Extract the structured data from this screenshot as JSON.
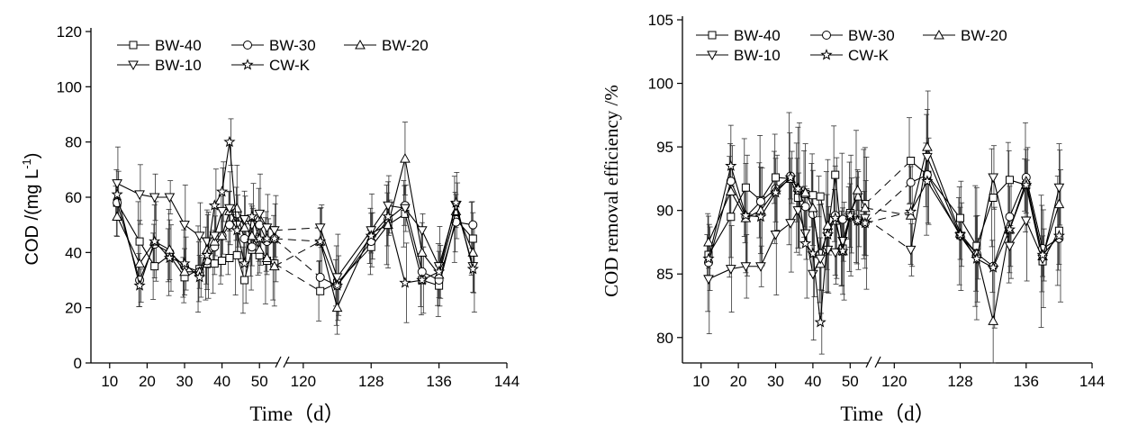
{
  "chart_data": [
    {
      "type": "line",
      "title": "",
      "xlabel": "Time（d）",
      "ylabel_main": "COD /(mg L",
      "ylabel_sup": "-1",
      "ylabel_end": ")",
      "ylim": [
        0,
        120
      ],
      "yticks": [
        0,
        20,
        40,
        60,
        80,
        100,
        120
      ],
      "xticks_left": [
        10,
        20,
        30,
        40,
        50
      ],
      "xticks_right": [
        120,
        128,
        136,
        144
      ],
      "x_broken_axis": true,
      "x_segments": [
        [
          5,
          55
        ],
        [
          118,
          144
        ]
      ],
      "legend_position": "top-left",
      "x": [
        12,
        18,
        22,
        26,
        30,
        34,
        36,
        38,
        40,
        42,
        44,
        46,
        48,
        50,
        52,
        54,
        122,
        124,
        128,
        130,
        132,
        134,
        136,
        138,
        140
      ],
      "series": [
        {
          "name": "BW-40",
          "marker": "square",
          "values": [
            58,
            44,
            35,
            39,
            31,
            34,
            36,
            36,
            37,
            38,
            39,
            30,
            41,
            39,
            37,
            36,
            26,
            29,
            42,
            50,
            54,
            30,
            28,
            52,
            45
          ]
        },
        {
          "name": "BW-30",
          "marker": "circle",
          "values": [
            58,
            30,
            43,
            40,
            35,
            33,
            37,
            42,
            46,
            50,
            54,
            45,
            42,
            50,
            44,
            45,
            31,
            28,
            44,
            52,
            57,
            33,
            30,
            51,
            50
          ]
        },
        {
          "name": "BW-20",
          "marker": "triangle-up",
          "values": [
            53,
            36,
            44,
            41,
            33,
            33,
            41,
            44,
            46,
            55,
            56,
            49,
            46,
            41,
            38,
            35,
            44,
            20,
            47,
            50,
            74,
            40,
            32,
            55,
            40
          ]
        },
        {
          "name": "BW-10",
          "marker": "triangle-down",
          "values": [
            65,
            61,
            60,
            60,
            50,
            46,
            44,
            46,
            55,
            56,
            50,
            52,
            50,
            54,
            49,
            48,
            49,
            31,
            48,
            57,
            56,
            48,
            35,
            57,
            35
          ]
        },
        {
          "name": "CW-K",
          "marker": "star",
          "values": [
            61,
            28,
            44,
            38,
            36,
            31,
            39,
            57,
            62,
            80,
            48,
            36,
            53,
            45,
            45,
            45,
            44,
            28,
            46,
            53,
            29,
            30,
            33,
            58,
            34
          ]
        }
      ]
    },
    {
      "type": "line",
      "title": "",
      "xlabel": "Time（d）",
      "ylabel": "COD removal efficiency /%",
      "ylim": [
        78,
        105
      ],
      "yticks": [
        80,
        85,
        90,
        95,
        100,
        105
      ],
      "xticks_left": [
        10,
        20,
        30,
        40,
        50
      ],
      "xticks_right": [
        120,
        128,
        136,
        144
      ],
      "x_broken_axis": true,
      "x_segments": [
        [
          5,
          55
        ],
        [
          118,
          144
        ]
      ],
      "legend_position": "top-left",
      "x": [
        12,
        18,
        22,
        26,
        30,
        34,
        36,
        38,
        40,
        42,
        44,
        46,
        48,
        50,
        52,
        54,
        122,
        124,
        128,
        130,
        132,
        134,
        136,
        138,
        140
      ],
      "series": [
        {
          "name": "BW-40",
          "marker": "square",
          "values": [
            86.5,
            89.5,
            91.8,
            90.8,
            92.6,
            92.5,
            91.0,
            91.3,
            91.2,
            91.1,
            88.3,
            92.8,
            87.0,
            89.8,
            91.1,
            90.5,
            93.9,
            92.8,
            89.4,
            87.2,
            91.0,
            92.4,
            92.0,
            86.0,
            88.4
          ]
        },
        {
          "name": "BW-30",
          "marker": "circle",
          "values": [
            85.9,
            92.3,
            89.5,
            90.7,
            91.7,
            92.7,
            91.6,
            90.3,
            89.7,
            86.6,
            88.3,
            89.6,
            89.3,
            89.5,
            89.2,
            89.0,
            92.2,
            92.8,
            88.0,
            86.6,
            85.6,
            89.5,
            92.6,
            87.0,
            87.8
          ]
        },
        {
          "name": "BW-20",
          "marker": "triangle-up",
          "values": [
            87.5,
            91.5,
            89.4,
            90.0,
            91.6,
            92.5,
            91.8,
            91.4,
            90.2,
            85.8,
            88.8,
            89.2,
            86.8,
            89.6,
            91.6,
            90.2,
            89.6,
            95.0,
            88.2,
            86.6,
            81.3,
            88.5,
            92.3,
            86.4,
            90.5
          ]
        },
        {
          "name": "BW-10",
          "marker": "triangle-down",
          "values": [
            84.6,
            85.4,
            85.6,
            85.6,
            88.1,
            89.0,
            90.0,
            88.2,
            85.0,
            86.2,
            86.9,
            86.7,
            87.6,
            89.6,
            89.2,
            89.4,
            86.9,
            94.2,
            88.0,
            86.2,
            92.6,
            87.2,
            89.2,
            86.2,
            91.8
          ]
        },
        {
          "name": "CW-K",
          "marker": "star",
          "values": [
            86.2,
            93.5,
            89.6,
            89.5,
            91.4,
            92.6,
            91.7,
            87.4,
            86.6,
            81.2,
            88.1,
            89.4,
            86.8,
            89.6,
            89.2,
            89.0,
            89.9,
            92.3,
            88.1,
            86.2,
            85.5,
            88.5,
            92.0,
            86.5,
            88.0
          ]
        }
      ]
    }
  ]
}
